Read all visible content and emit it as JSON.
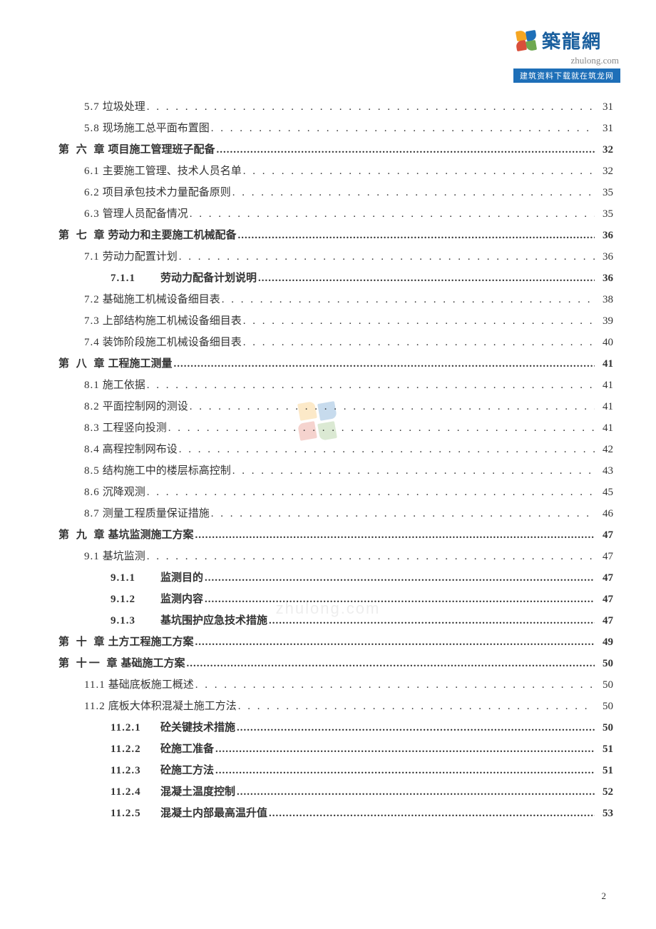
{
  "logo": {
    "cn": "築龍網",
    "en": "zhulong.com",
    "banner": "建筑资料下载就在筑龙网"
  },
  "watermark_url": "zhulong.com",
  "page_number": "2",
  "colors": {
    "text": "#333333",
    "logo_blue": "#1e6fb8",
    "logo_yellow": "#f5a623",
    "logo_green": "#6fa84f",
    "logo_red": "#d94f3a",
    "watermark": "#eeeeee"
  },
  "toc": [
    {
      "level": 2,
      "num": "5.7",
      "title": "垃圾处理",
      "page": "31"
    },
    {
      "level": 2,
      "num": "5.8",
      "title": "现场施工总平面布置图",
      "page": "31"
    },
    {
      "level": 1,
      "num": "第 六 章",
      "title": "项目施工管理班子配备",
      "page": "32"
    },
    {
      "level": 2,
      "num": "6.1",
      "title": "主要施工管理、技术人员名单",
      "page": "32"
    },
    {
      "level": 2,
      "num": "6.2",
      "title": "项目承包技术力量配备原则",
      "page": "35"
    },
    {
      "level": 2,
      "num": "6.3",
      "title": "管理人员配备情况",
      "page": "35"
    },
    {
      "level": 1,
      "num": "第 七 章",
      "title": "劳动力和主要施工机械配备",
      "page": "36"
    },
    {
      "level": 2,
      "num": "7.1",
      "title": "劳动力配置计划",
      "page": "36"
    },
    {
      "level": 3,
      "num": "7.1.1",
      "title": "劳动力配备计划说明",
      "page": "36"
    },
    {
      "level": 2,
      "num": "7.2",
      "title": "基础施工机械设备细目表",
      "page": "38"
    },
    {
      "level": 2,
      "num": "7.3",
      "title": "上部结构施工机械设备细目表",
      "page": "39"
    },
    {
      "level": 2,
      "num": "7.4",
      "title": "装饰阶段施工机械设备细目表",
      "page": "40"
    },
    {
      "level": 1,
      "num": "第 八 章",
      "title": "工程施工测量",
      "page": "41"
    },
    {
      "level": 2,
      "num": "8.1",
      "title": "施工依据",
      "page": "41"
    },
    {
      "level": 2,
      "num": "8.2",
      "title": "平面控制网的测设",
      "page": "41"
    },
    {
      "level": 2,
      "num": "8.3",
      "title": "工程竖向投测",
      "page": "41"
    },
    {
      "level": 2,
      "num": "8.4",
      "title": "高程控制网布设",
      "page": "42"
    },
    {
      "level": 2,
      "num": "8.5",
      "title": "结构施工中的楼层标高控制",
      "page": "43"
    },
    {
      "level": 2,
      "num": "8.6",
      "title": "沉降观测",
      "page": "45"
    },
    {
      "level": 2,
      "num": "8.7",
      "title": "测量工程质量保证措施",
      "page": "46"
    },
    {
      "level": 1,
      "num": "第 九 章",
      "title": "基坑监测施工方案",
      "page": "47"
    },
    {
      "level": 2,
      "num": "9.1",
      "title": "基坑监测",
      "page": "47"
    },
    {
      "level": 3,
      "num": "9.1.1",
      "title": "监测目的",
      "page": "47"
    },
    {
      "level": 3,
      "num": "9.1.2",
      "title": "监测内容",
      "page": "47"
    },
    {
      "level": 3,
      "num": "9.1.3",
      "title": "基坑围护应急技术措施",
      "page": "47"
    },
    {
      "level": 1,
      "num": "第 十 章",
      "title": "土方工程施工方案",
      "page": "49"
    },
    {
      "level": 1,
      "num": "第 十一 章",
      "title": "基础施工方案",
      "page": "50"
    },
    {
      "level": 2,
      "num": "11.1",
      "title": "基础底板施工概述",
      "page": "50"
    },
    {
      "level": 2,
      "num": "11.2",
      "title": "底板大体积混凝土施工方法",
      "page": "50"
    },
    {
      "level": 3,
      "num": "11.2.1",
      "title": "砼关键技术措施",
      "page": "50"
    },
    {
      "level": 3,
      "num": "11.2.2",
      "title": "砼施工准备",
      "page": "51"
    },
    {
      "level": 3,
      "num": "11.2.3",
      "title": "砼施工方法",
      "page": "51"
    },
    {
      "level": 3,
      "num": "11.2.4",
      "title": "混凝土温度控制",
      "page": "52"
    },
    {
      "level": 3,
      "num": "11.2.5",
      "title": "混凝土内部最高温升值",
      "page": "53"
    }
  ]
}
